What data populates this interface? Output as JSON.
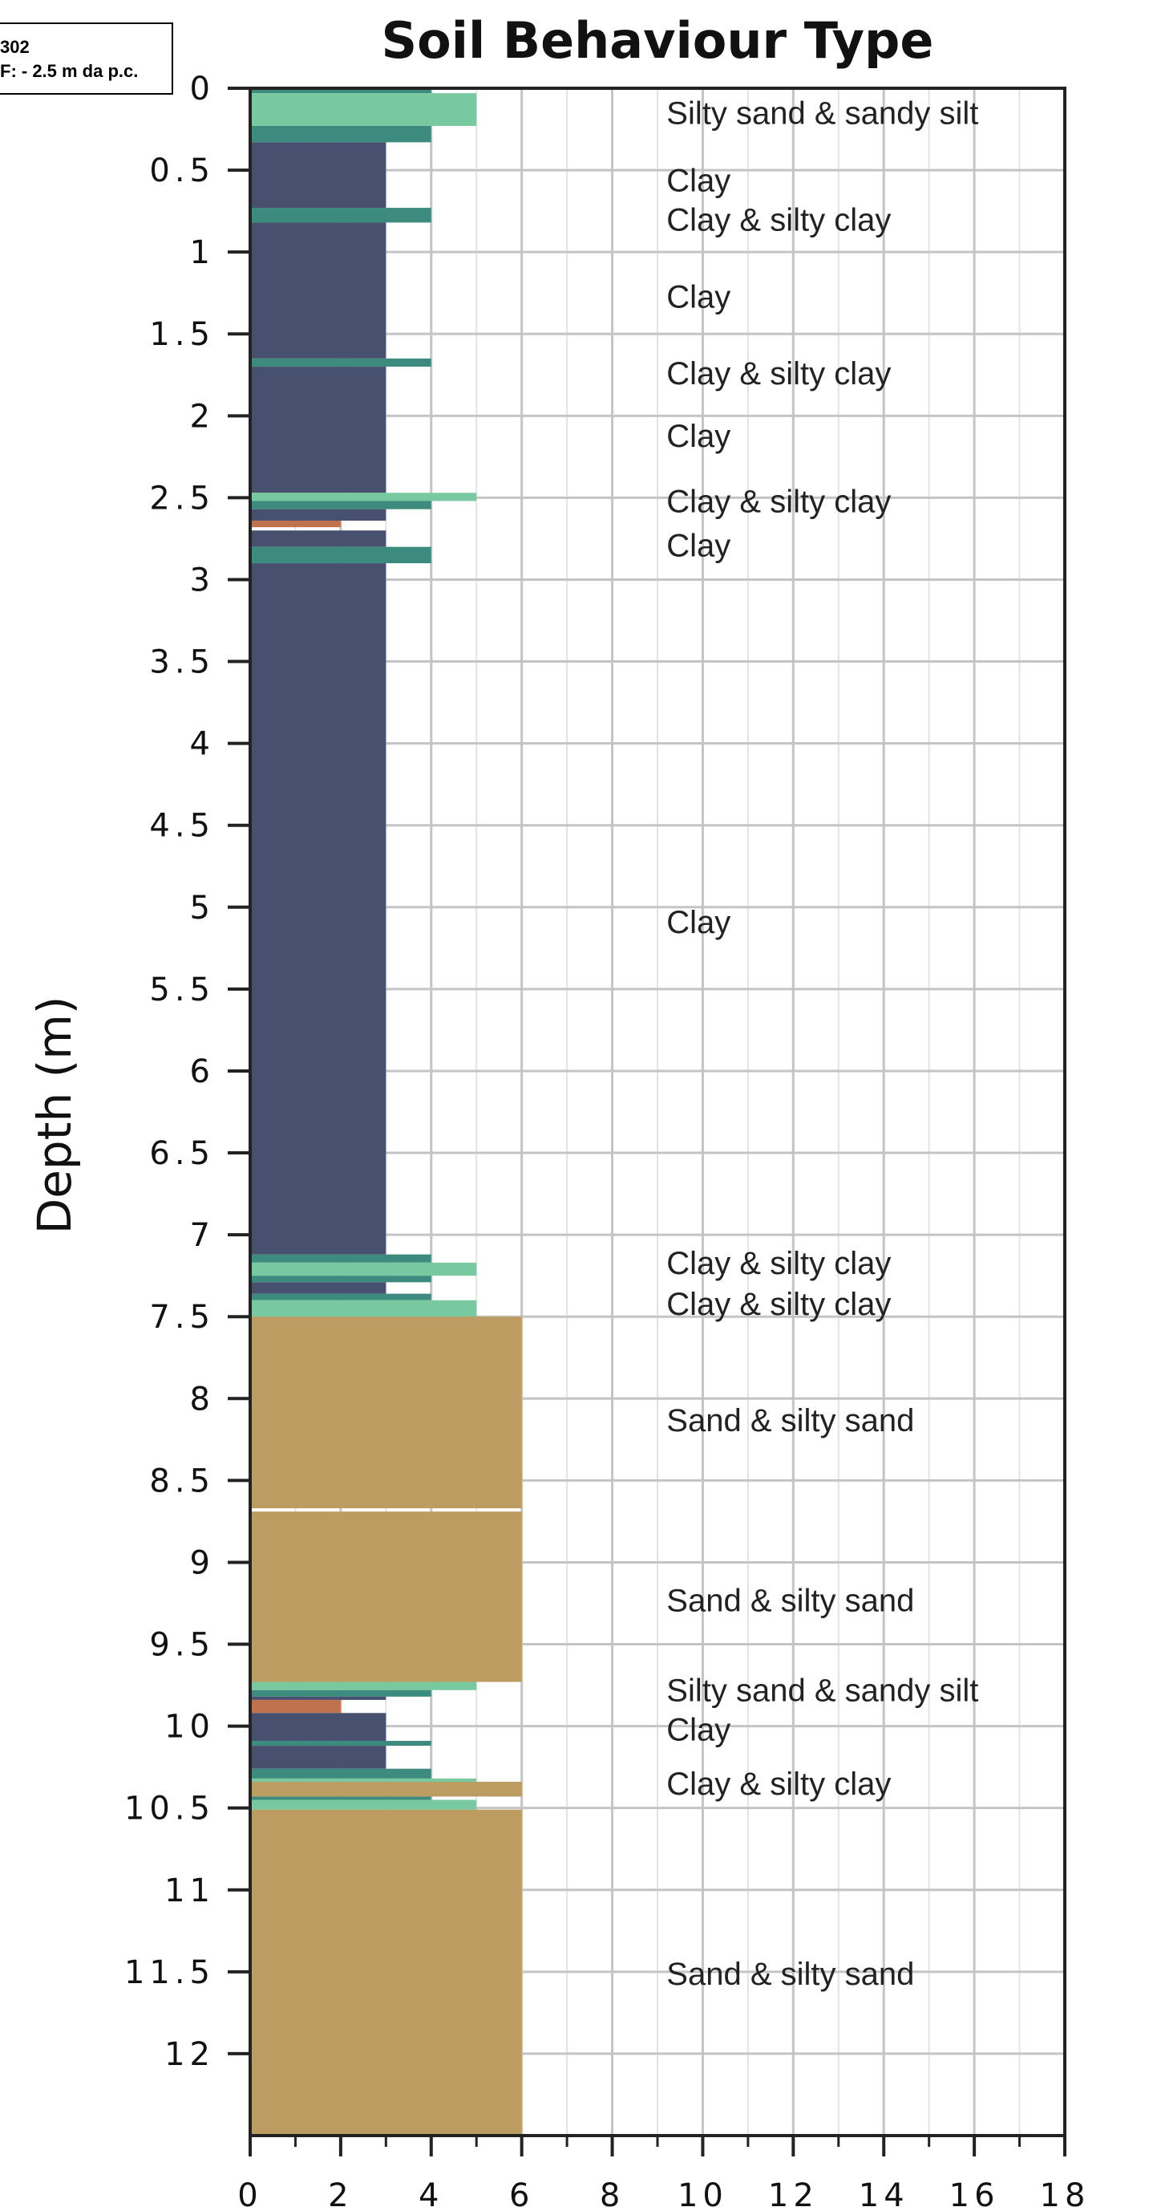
{
  "info_box": {
    "line1": "302",
    "line2": "F: - 2.5 m  da p.c."
  },
  "chart_data": {
    "type": "bar",
    "title": "Soil Behaviour Type",
    "ylabel": "Depth (m)",
    "xlabel": "",
    "xlim": [
      0,
      18
    ],
    "ylim": [
      0,
      12.5
    ],
    "y_inverted": true,
    "grid": true,
    "x_ticks": [
      "0",
      "2",
      "4",
      "6",
      "8",
      "10",
      "12",
      "14",
      "16",
      "18"
    ],
    "y_ticks": [
      "0",
      "0.5",
      "1",
      "1.5",
      "2",
      "2.5",
      "3",
      "3.5",
      "4",
      "4.5",
      "5",
      "5.5",
      "6",
      "6.5",
      "7",
      "7.5",
      "8",
      "8.5",
      "9",
      "9.5",
      "10",
      "10.5",
      "11",
      "11.5",
      "12"
    ],
    "colors": {
      "clay": "#47506f",
      "clay_silty_clay": "#3d8b7f",
      "silty_sand_sandy_silt": "#79c9a0",
      "sand_silty_sand": "#bd9c62",
      "organic": "#c0714e"
    },
    "bars": [
      {
        "top": 0.0,
        "bottom": 0.03,
        "sbt": 4,
        "soil": "clay_silty_clay"
      },
      {
        "top": 0.03,
        "bottom": 0.23,
        "sbt": 5,
        "soil": "silty_sand_sandy_silt"
      },
      {
        "top": 0.23,
        "bottom": 0.33,
        "sbt": 4,
        "soil": "clay_silty_clay"
      },
      {
        "top": 0.33,
        "bottom": 0.73,
        "sbt": 3,
        "soil": "clay"
      },
      {
        "top": 0.73,
        "bottom": 0.82,
        "sbt": 4,
        "soil": "clay_silty_clay"
      },
      {
        "top": 0.82,
        "bottom": 1.65,
        "sbt": 3,
        "soil": "clay"
      },
      {
        "top": 1.65,
        "bottom": 1.7,
        "sbt": 4,
        "soil": "clay_silty_clay"
      },
      {
        "top": 1.7,
        "bottom": 2.47,
        "sbt": 3,
        "soil": "clay"
      },
      {
        "top": 2.47,
        "bottom": 2.52,
        "sbt": 5,
        "soil": "silty_sand_sandy_silt"
      },
      {
        "top": 2.52,
        "bottom": 2.57,
        "sbt": 4,
        "soil": "clay_silty_clay"
      },
      {
        "top": 2.57,
        "bottom": 2.64,
        "sbt": 3,
        "soil": "clay"
      },
      {
        "top": 2.64,
        "bottom": 2.68,
        "sbt": 2,
        "soil": "organic"
      },
      {
        "top": 2.7,
        "bottom": 2.8,
        "sbt": 3,
        "soil": "clay"
      },
      {
        "top": 2.8,
        "bottom": 2.9,
        "sbt": 4,
        "soil": "clay_silty_clay"
      },
      {
        "top": 2.9,
        "bottom": 7.12,
        "sbt": 3,
        "soil": "clay"
      },
      {
        "top": 7.12,
        "bottom": 7.17,
        "sbt": 4,
        "soil": "clay_silty_clay"
      },
      {
        "top": 7.17,
        "bottom": 7.25,
        "sbt": 5,
        "soil": "silty_sand_sandy_silt"
      },
      {
        "top": 7.25,
        "bottom": 7.29,
        "sbt": 4,
        "soil": "clay_silty_clay"
      },
      {
        "top": 7.29,
        "bottom": 7.36,
        "sbt": 3,
        "soil": "clay"
      },
      {
        "top": 7.36,
        "bottom": 7.4,
        "sbt": 4,
        "soil": "clay_silty_clay"
      },
      {
        "top": 7.4,
        "bottom": 7.5,
        "sbt": 5,
        "soil": "silty_sand_sandy_silt"
      },
      {
        "top": 7.5,
        "bottom": 8.67,
        "sbt": 6,
        "soil": "sand_silty_sand"
      },
      {
        "top": 8.69,
        "bottom": 9.73,
        "sbt": 6,
        "soil": "sand_silty_sand"
      },
      {
        "top": 9.73,
        "bottom": 9.78,
        "sbt": 5,
        "soil": "silty_sand_sandy_silt"
      },
      {
        "top": 9.78,
        "bottom": 9.82,
        "sbt": 4,
        "soil": "clay_silty_clay"
      },
      {
        "top": 9.82,
        "bottom": 9.84,
        "sbt": 3,
        "soil": "clay"
      },
      {
        "top": 9.84,
        "bottom": 9.92,
        "sbt": 2,
        "soil": "organic"
      },
      {
        "top": 9.92,
        "bottom": 10.09,
        "sbt": 3,
        "soil": "clay"
      },
      {
        "top": 10.09,
        "bottom": 10.12,
        "sbt": 4,
        "soil": "clay_silty_clay"
      },
      {
        "top": 10.12,
        "bottom": 10.26,
        "sbt": 3,
        "soil": "clay"
      },
      {
        "top": 10.26,
        "bottom": 10.32,
        "sbt": 4,
        "soil": "clay_silty_clay"
      },
      {
        "top": 10.32,
        "bottom": 10.34,
        "sbt": 5,
        "soil": "silty_sand_sandy_silt"
      },
      {
        "top": 10.34,
        "bottom": 10.43,
        "sbt": 6,
        "soil": "sand_silty_sand"
      },
      {
        "top": 10.43,
        "bottom": 10.45,
        "sbt": 4,
        "soil": "clay_silty_clay"
      },
      {
        "top": 10.45,
        "bottom": 10.51,
        "sbt": 5,
        "soil": "silty_sand_sandy_silt"
      },
      {
        "top": 10.51,
        "bottom": 12.5,
        "sbt": 6,
        "soil": "sand_silty_sand"
      }
    ],
    "annotations": [
      {
        "depth": 0.15,
        "text": "Silty sand & sandy silt"
      },
      {
        "depth": 0.56,
        "text": "Clay"
      },
      {
        "depth": 0.8,
        "text": "Clay & silty clay"
      },
      {
        "depth": 1.27,
        "text": "Clay"
      },
      {
        "depth": 1.74,
        "text": "Clay & silty clay"
      },
      {
        "depth": 2.12,
        "text": "Clay"
      },
      {
        "depth": 2.52,
        "text": "Clay & silty clay"
      },
      {
        "depth": 2.79,
        "text": "Clay"
      },
      {
        "depth": 5.09,
        "text": "Clay"
      },
      {
        "depth": 7.17,
        "text": "Clay & silty clay"
      },
      {
        "depth": 7.42,
        "text": "Clay & silty clay"
      },
      {
        "depth": 8.13,
        "text": "Sand & silty sand"
      },
      {
        "depth": 9.23,
        "text": "Sand & silty sand"
      },
      {
        "depth": 9.78,
        "text": "Silty sand & sandy silt"
      },
      {
        "depth": 10.02,
        "text": "Clay"
      },
      {
        "depth": 10.35,
        "text": "Clay & silty clay"
      },
      {
        "depth": 11.51,
        "text": "Sand & silty sand"
      }
    ]
  }
}
